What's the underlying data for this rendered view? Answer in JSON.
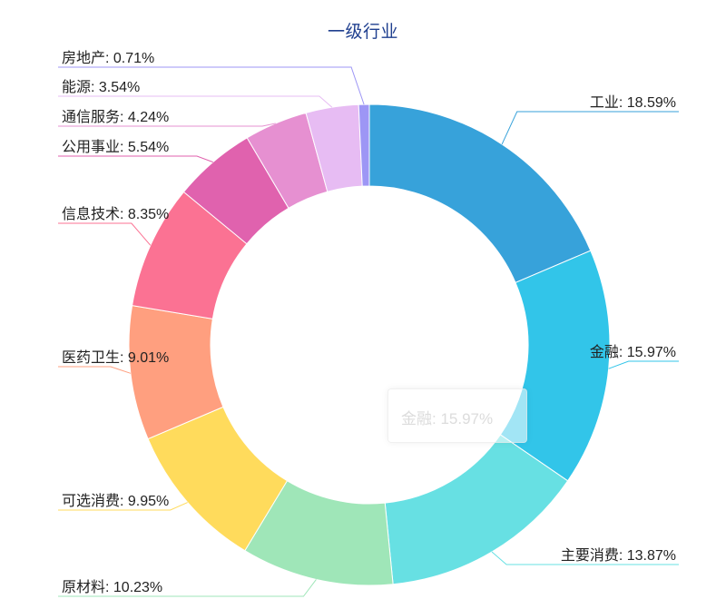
{
  "chart_data": {
    "type": "pie",
    "title": "一级行业",
    "categories": [
      "工业",
      "金融",
      "主要消费",
      "原材料",
      "可选消费",
      "医药卫生",
      "信息技术",
      "公用事业",
      "通信服务",
      "能源",
      "房地产"
    ],
    "values": [
      18.59,
      15.97,
      13.87,
      10.23,
      9.95,
      9.01,
      8.35,
      5.54,
      4.24,
      3.54,
      0.71
    ],
    "labels": [
      "工业: 18.59%",
      "金融: 15.97%",
      "主要消费: 13.87%",
      "原材料: 10.23%",
      "可选消费: 9.95%",
      "医药卫生: 9.01%",
      "信息技术: 8.35%",
      "公用事业: 5.54%",
      "通信服务: 4.24%",
      "能源: 3.54%",
      "房地产: 0.71%"
    ],
    "colors": [
      "#37a2da",
      "#32c5e9",
      "#67e0e3",
      "#9fe6b8",
      "#ffdb5c",
      "#ff9f7f",
      "#fb7293",
      "#e062ae",
      "#e690d1",
      "#e7bcf3",
      "#9d96f5"
    ],
    "donut": true,
    "start": "top"
  },
  "tooltip": {
    "text": "金融: 15.97%"
  }
}
